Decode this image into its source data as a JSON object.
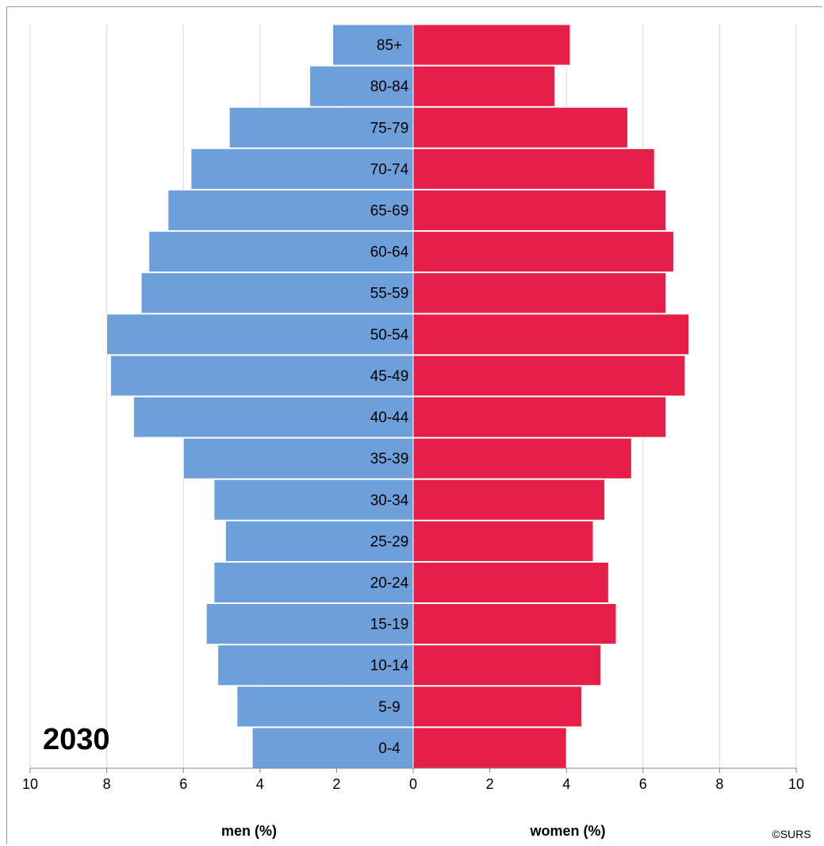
{
  "chart_data": {
    "type": "bar",
    "orientation": "horizontal",
    "subtype": "population-pyramid",
    "categories": [
      "85+",
      "80-84",
      "75-79",
      "70-74",
      "65-69",
      "60-64",
      "55-59",
      "50-54",
      "45-49",
      "40-44",
      "35-39",
      "30-34",
      "25-29",
      "20-24",
      "15-19",
      "10-14",
      "5-9",
      "0-4"
    ],
    "series": [
      {
        "values": [
          2.1,
          2.7,
          4.8,
          5.8,
          6.4,
          6.9,
          7.1,
          8.0,
          7.9,
          7.3,
          6.0,
          5.2,
          4.9,
          5.2,
          5.4,
          5.1,
          4.6,
          4.2
        ],
        "color": "#6d9fdb",
        "side": "left"
      },
      {
        "values": [
          4.1,
          3.7,
          5.6,
          6.3,
          6.6,
          6.8,
          6.6,
          7.2,
          7.1,
          6.6,
          5.7,
          5.0,
          4.7,
          5.1,
          5.3,
          4.9,
          4.4,
          4.0
        ],
        "color": "#e61f48",
        "side": "right"
      }
    ],
    "xlim": [
      -10,
      10
    ],
    "xticks": [
      "10",
      "8",
      "6",
      "4",
      "2",
      "0",
      "2",
      "4",
      "6",
      "8",
      "10"
    ],
    "xlabel_left": "men (%)",
    "xlabel_right": "women (%)",
    "annotation": "2030",
    "credit": "©SURS",
    "grid": true
  }
}
